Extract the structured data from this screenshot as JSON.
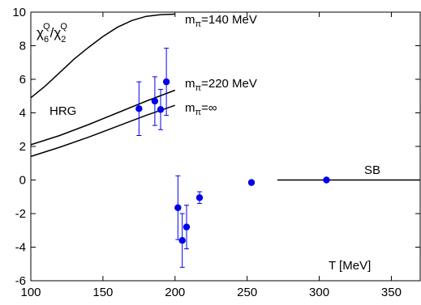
{
  "chart_data": {
    "type": "scatter",
    "title": "",
    "xlabel": "T [MeV]",
    "ylabel_parts": {
      "chi": "χ",
      "sub6": "6",
      "sup": "Q",
      "slash": "/",
      "sub2": "2"
    },
    "xlim": [
      100,
      370
    ],
    "ylim": [
      -6,
      10
    ],
    "xticks": [
      100,
      150,
      200,
      250,
      300,
      350
    ],
    "yticks": [
      -6,
      -4,
      -2,
      0,
      2,
      4,
      6,
      8,
      10
    ],
    "grid": false,
    "colors": {
      "points": "#0000ee",
      "curves": "#000000"
    },
    "points": [
      {
        "x": 175,
        "y": 4.25,
        "err": 1.6
      },
      {
        "x": 186,
        "y": 4.7,
        "err": 1.45
      },
      {
        "x": 190,
        "y": 4.2,
        "err": 1.2
      },
      {
        "x": 194,
        "y": 5.85,
        "err": 2.0
      },
      {
        "x": 202,
        "y": -1.65,
        "err": 1.9
      },
      {
        "x": 205,
        "y": -3.6,
        "err": 1.6
      },
      {
        "x": 208,
        "y": -2.8,
        "err": 1.3
      },
      {
        "x": 217,
        "y": -1.05,
        "err": 0.35
      },
      {
        "x": 253,
        "y": -0.15,
        "err": 0.1
      },
      {
        "x": 305,
        "y": 0.0,
        "err": 0.05
      }
    ],
    "curves": [
      {
        "name": "m_pi=140 MeV",
        "x": [
          100,
          110,
          120,
          130,
          140,
          150,
          160,
          170,
          180,
          190,
          200
        ],
        "y": [
          4.9,
          5.6,
          6.4,
          7.2,
          7.9,
          8.55,
          9.1,
          9.5,
          9.75,
          9.85,
          9.88
        ]
      },
      {
        "name": "m_pi=220 MeV",
        "x": [
          100,
          120,
          140,
          160,
          180,
          200
        ],
        "y": [
          2.1,
          2.65,
          3.3,
          4.0,
          4.7,
          5.35
        ]
      },
      {
        "name": "m_pi=inf",
        "x": [
          100,
          120,
          140,
          160,
          180,
          200
        ],
        "y": [
          1.4,
          1.95,
          2.55,
          3.2,
          3.85,
          4.45
        ]
      }
    ],
    "sb_line": {
      "x": [
        271,
        370
      ],
      "y": 0.0
    },
    "annotations": {
      "mpi140": {
        "m": "m",
        "sub": "π",
        "rest": "=140 MeV"
      },
      "mpi220": {
        "m": "m",
        "sub": "π",
        "rest": "=220 MeV"
      },
      "mpiinf": {
        "m": "m",
        "sub": "π",
        "rest": "=∞"
      },
      "hrg": "HRG",
      "sb": "SB",
      "tlabel": "T [MeV]"
    }
  }
}
